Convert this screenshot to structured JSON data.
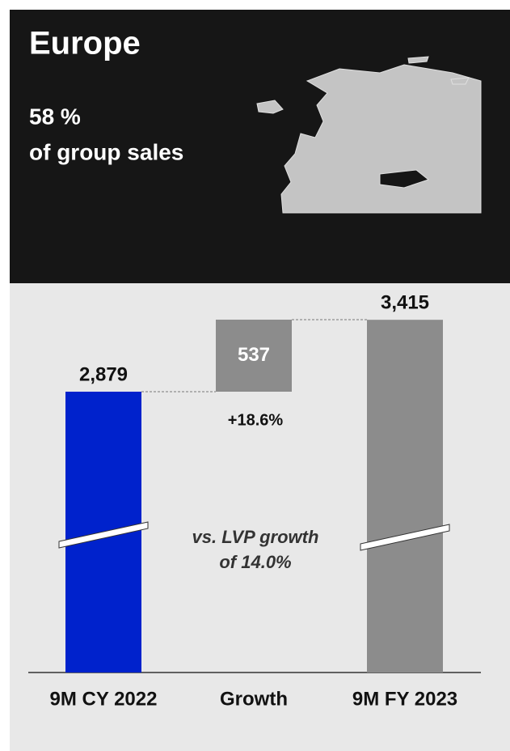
{
  "chart_data": {
    "type": "waterfall",
    "title": "Europe",
    "subtitle": [
      "58 %",
      "of group sales"
    ],
    "categories": [
      "9M CY 2022",
      "Growth",
      "9M FY 2023"
    ],
    "measure": [
      "absolute",
      "relative",
      "absolute"
    ],
    "values": [
      2879,
      537,
      3415
    ],
    "value_labels": [
      "2,879",
      "537",
      "3,415"
    ],
    "colors": [
      "#0022cc",
      "#8c8c8c",
      "#8c8c8c"
    ],
    "growth_label": "+18.6%",
    "annotation": [
      "vs. LVP growth",
      "of 14.0%"
    ],
    "axis_break": true
  }
}
